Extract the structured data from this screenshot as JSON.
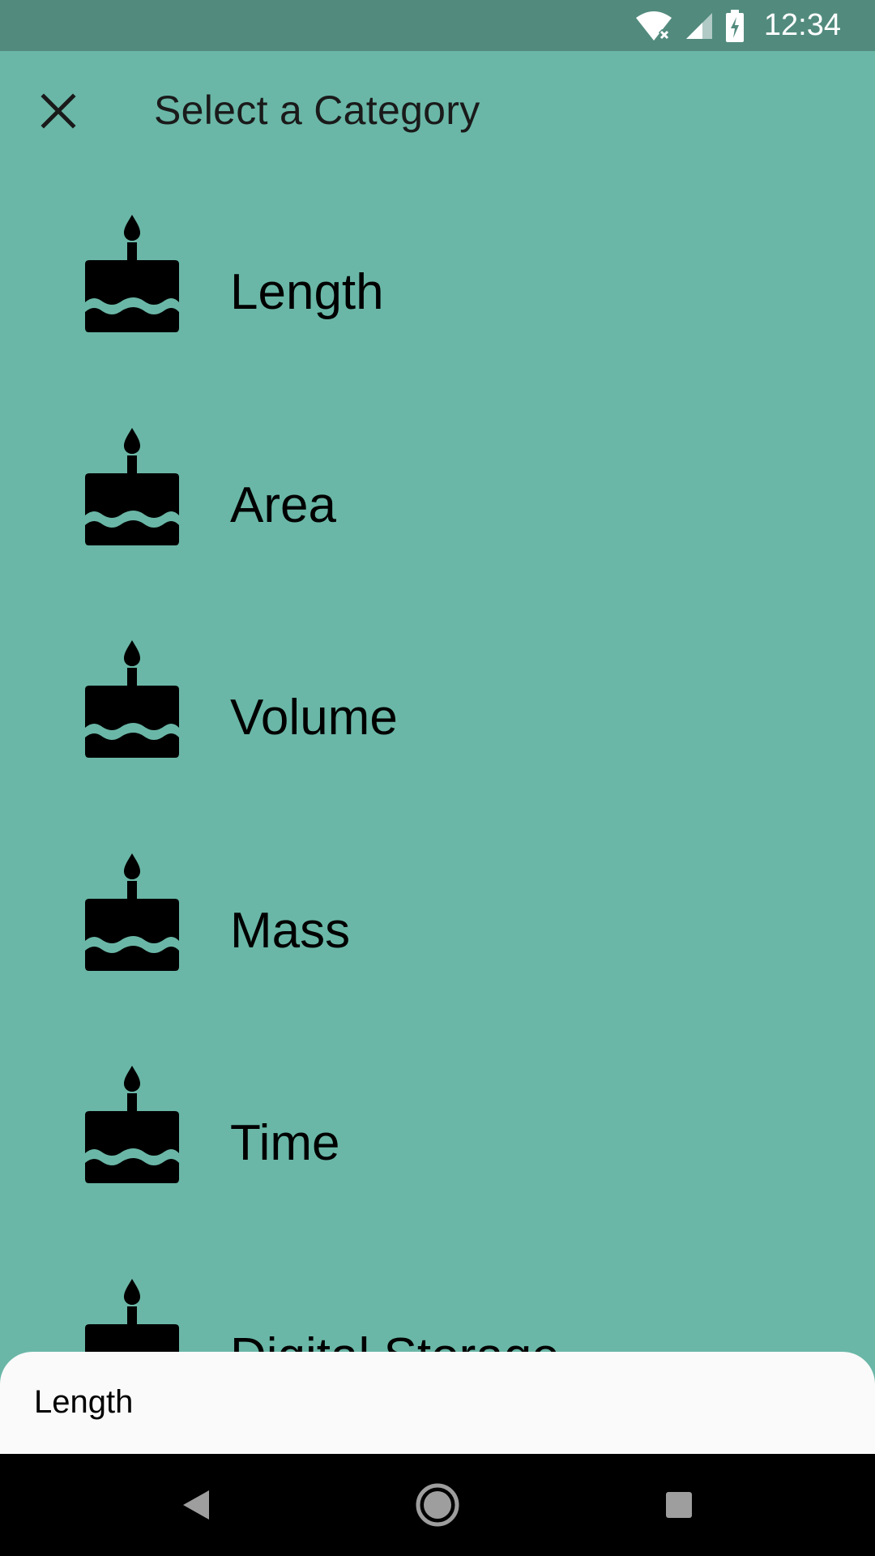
{
  "status_bar": {
    "time": "12:34",
    "icons": [
      "wifi-off-icon",
      "signal-icon",
      "battery-charging-icon"
    ]
  },
  "app_bar": {
    "title": "Select a Category",
    "close_icon": "close-icon"
  },
  "categories": [
    {
      "label": "Length",
      "icon": "cake-icon"
    },
    {
      "label": "Area",
      "icon": "cake-icon"
    },
    {
      "label": "Volume",
      "icon": "cake-icon"
    },
    {
      "label": "Mass",
      "icon": "cake-icon"
    },
    {
      "label": "Time",
      "icon": "cake-icon"
    },
    {
      "label": "Digital Storage",
      "icon": "cake-icon"
    }
  ],
  "bottom_sheet": {
    "selected": "Length"
  },
  "nav_bar": {
    "buttons": [
      "back-icon",
      "home-icon",
      "recents-icon"
    ]
  },
  "colors": {
    "background": "#6AB7A7",
    "status_bar": "#528B7E",
    "sheet": "#FAFAFA",
    "nav": "#000000"
  }
}
